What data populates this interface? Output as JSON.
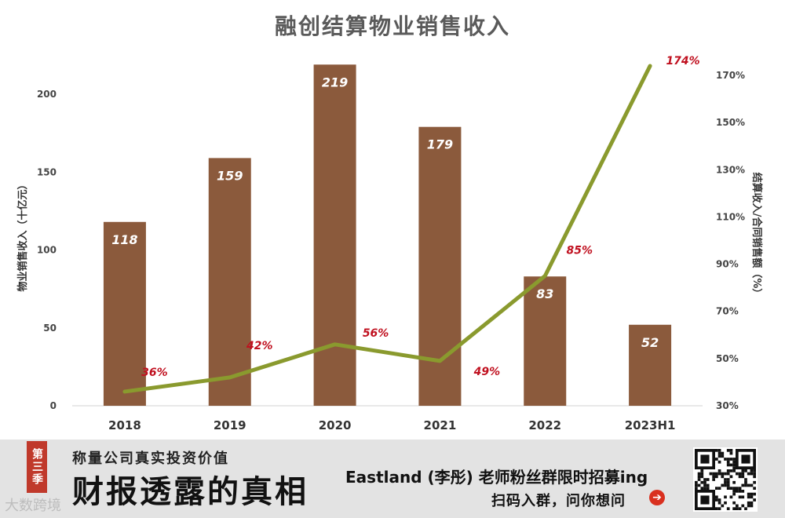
{
  "chart_data": {
    "type": "bar+line",
    "title": "融创结算物业销售收入",
    "categories": [
      "2018",
      "2019",
      "2020",
      "2021",
      "2022",
      "2023H1"
    ],
    "series": [
      {
        "type": "bar",
        "values": [
          118,
          159,
          219,
          179,
          83,
          52
        ],
        "color": "#8b5a3c"
      },
      {
        "type": "line",
        "values": [
          36,
          42,
          56,
          49,
          85,
          174
        ],
        "color": "#8a9a2e",
        "labels": [
          "36%",
          "42%",
          "56%",
          "49%",
          "85%",
          "174%"
        ]
      }
    ],
    "y_left": {
      "title": "物业销售收入（十亿元）",
      "range": [
        0,
        220
      ],
      "ticks": [
        0,
        50,
        100,
        150,
        200
      ]
    },
    "y_right": {
      "title": "结算收入/合同销售额（%）",
      "range": [
        30,
        178
      ],
      "ticks": [
        "30%",
        "50%",
        "70%",
        "90%",
        "110%",
        "130%",
        "150%",
        "170%"
      ]
    },
    "bar_label_color": "#ffffff",
    "line_label_color": "#c0101f",
    "grid": false
  },
  "banner": {
    "season": "第三季",
    "subtitle": "称量公司真实投资价值",
    "main": "财报透露的真相",
    "right_line1": "Eastland (李彤) 老师粉丝群限时招募ing",
    "right_line2": "扫码入群，问你想问",
    "arrow_icon": "➔",
    "watermark": "大数跨境"
  }
}
